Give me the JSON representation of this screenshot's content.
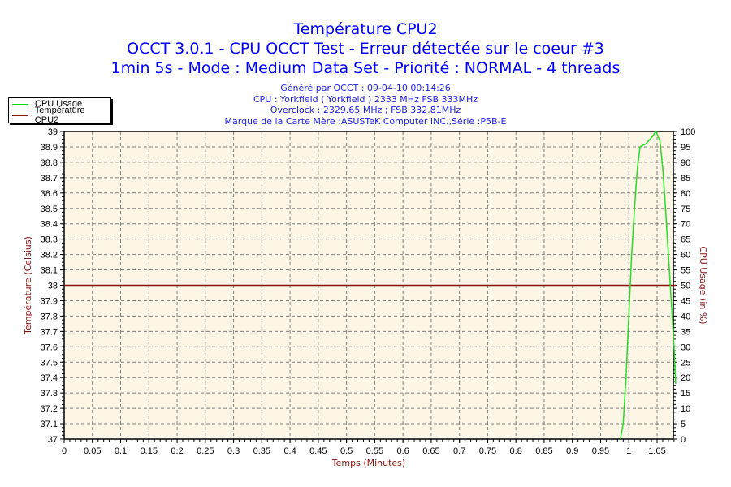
{
  "titles": {
    "line1": "Température CPU2",
    "line2": "OCCT 3.0.1 - CPU OCCT Test - Erreur détectée sur le coeur #3",
    "line3": "1min 5s - Mode : Medium Data Set - Priorité : NORMAL - 4 threads"
  },
  "subtitles": {
    "generated": "Généré par OCCT : 09-04-10 00:14:26",
    "cpu": "CPU : Yorkfield ( Yorkfield ) 2333 MHz FSB 333MHz",
    "overclock": "Overclock : 2329.65 MHz ; FSB 332.81MHz",
    "motherboard": "Marque de la Carte Mère :ASUSTeK Computer INC.,Série :P5B-E"
  },
  "legend": {
    "items": [
      {
        "label": "CPU Usage",
        "color": "#00e000"
      },
      {
        "label": "Température CPU2",
        "color": "#8b1010"
      }
    ]
  },
  "colors": {
    "plot_background": "#fdf6e6",
    "grid": "#808080",
    "temperature": "#8b1010",
    "cpu_usage": "#22dd22",
    "title": "#0000ff",
    "axis_title": "#8b1010"
  },
  "chart_data": {
    "type": "line",
    "title": "Température CPU2",
    "xlabel": "Temps (Minutes)",
    "ylabel": "Température (Celsius)",
    "y2label": "CPU Usage (in %)",
    "xlim": [
      0,
      1.083
    ],
    "ylim": [
      37,
      39
    ],
    "y2lim": [
      0,
      100
    ],
    "grid": true,
    "legend_position": "top-left",
    "x_ticks": [
      "0",
      "0.05",
      "0.1",
      "0.15",
      "0.2",
      "0.25",
      "0.3",
      "0.35",
      "0.4",
      "0.45",
      "0.5",
      "0.55",
      "0.6",
      "0.65",
      "0.7",
      "0.75",
      "0.8",
      "0.85",
      "0.9",
      "0.95",
      "1",
      "1.05"
    ],
    "y_ticks": [
      "37",
      "37.1",
      "37.2",
      "37.3",
      "37.4",
      "37.5",
      "37.6",
      "37.7",
      "37.8",
      "37.9",
      "38",
      "38.1",
      "38.2",
      "38.3",
      "38.4",
      "38.5",
      "38.6",
      "38.7",
      "38.8",
      "38.9",
      "39"
    ],
    "y2_ticks": [
      "0",
      "5",
      "10",
      "15",
      "20",
      "25",
      "30",
      "35",
      "40",
      "45",
      "50",
      "55",
      "60",
      "65",
      "70",
      "75",
      "80",
      "85",
      "90",
      "95",
      "100"
    ],
    "series": [
      {
        "name": "Température CPU2",
        "axis": "left",
        "x": [
          0,
          1.083
        ],
        "values": [
          38,
          38
        ]
      },
      {
        "name": "CPU Usage",
        "axis": "right",
        "x": [
          0.985,
          0.99,
          0.995,
          1.0,
          1.005,
          1.01,
          1.015,
          1.02,
          1.03,
          1.04,
          1.048,
          1.055,
          1.06,
          1.065,
          1.07,
          1.075,
          1.08,
          1.083
        ],
        "values": [
          0,
          5,
          20,
          40,
          60,
          75,
          88,
          95,
          96,
          98,
          100,
          97,
          88,
          75,
          60,
          45,
          30,
          18
        ]
      }
    ]
  }
}
